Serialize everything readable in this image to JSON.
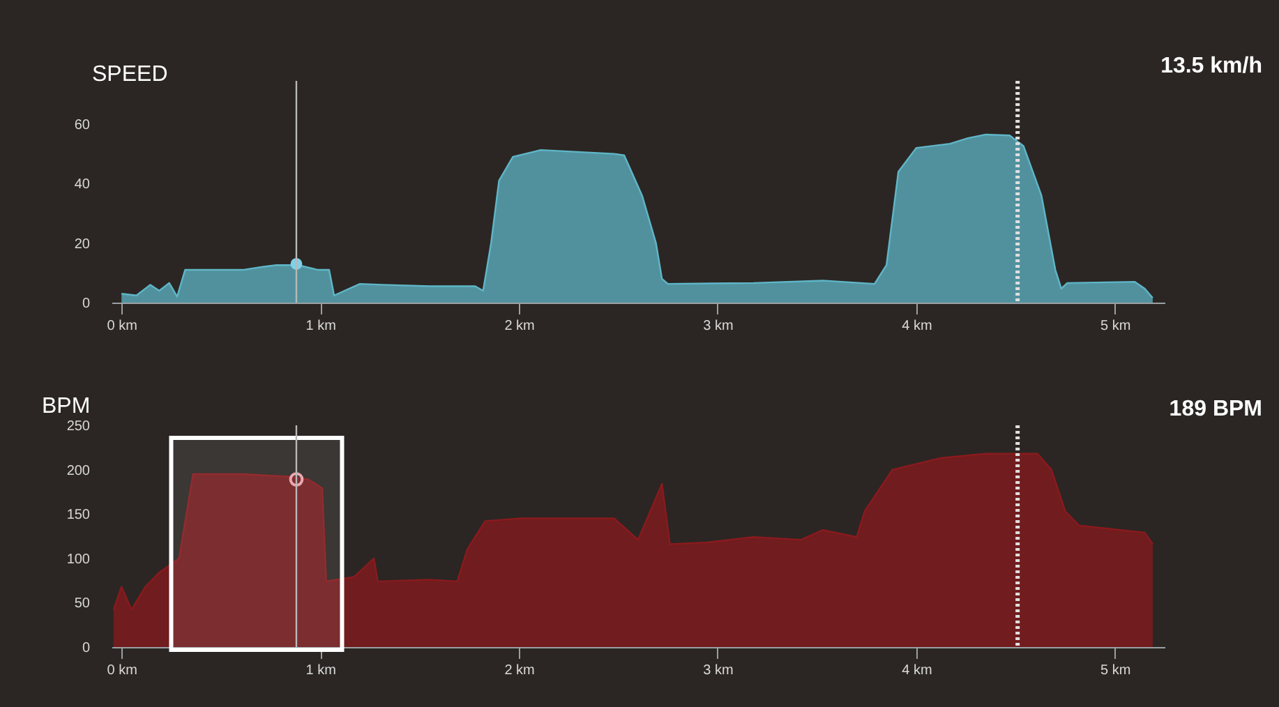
{
  "chart_data": [
    {
      "type": "area",
      "title": "SPEED",
      "annotations": [
        "13.5 km/h"
      ],
      "xlim": [
        -0.05,
        5.25
      ],
      "ylim": [
        0,
        60
      ],
      "xticks": [
        {
          "value": 0,
          "label": "0 km"
        },
        {
          "value": 1,
          "label": "1 km"
        },
        {
          "value": 2,
          "label": "2 km"
        },
        {
          "value": 3,
          "label": "3 km"
        },
        {
          "value": 4,
          "label": "4 km"
        },
        {
          "value": 5,
          "label": "5 km"
        }
      ],
      "yticks": [
        0,
        20,
        40,
        60
      ],
      "series": [
        {
          "type": "area",
          "color": "#5fb6c8",
          "x": [
            0,
            0.075,
            0.145,
            0.19,
            0.24,
            0.28,
            0.32,
            0.61,
            0.71,
            0.78,
            0.89,
            0.99,
            1.045,
            1.07,
            1.2,
            1.31,
            1.55,
            1.78,
            1.82,
            1.86,
            1.9,
            1.97,
            2.11,
            2.48,
            2.53,
            2.62,
            2.69,
            2.72,
            2.75,
            3.18,
            3.53,
            3.79,
            3.85,
            3.91,
            4,
            4.17,
            4.26,
            4.35,
            4.47,
            4.54,
            4.63,
            4.7,
            4.73,
            4.76,
            5.1,
            5.15,
            5.19
          ],
          "values": [
            3,
            2.4,
            6,
            4,
            6.6,
            2,
            11,
            11,
            12,
            12.6,
            12.6,
            11,
            11,
            2.4,
            6.3,
            6,
            5.5,
            5.5,
            4,
            20,
            41,
            49,
            51.3,
            50,
            49.5,
            36,
            20,
            8,
            6.3,
            6.6,
            7.4,
            6.3,
            12.6,
            44,
            52,
            53.4,
            55.3,
            56.5,
            56.2,
            52.6,
            36,
            11,
            4.7,
            6.6,
            7,
            4.7,
            1.6
          ]
        },
        {
          "type": "scatter",
          "color": "#7fd0e8",
          "x": [
            0.88
          ],
          "values": [
            13
          ]
        }
      ],
      "ref_lines": [
        {
          "axis": "x",
          "value": 0.88,
          "color": "#b8b8b8",
          "line_style": "solid"
        },
        {
          "axis": "x",
          "value": 4.51,
          "color": "#e0e0e0",
          "line_style": "dotted"
        }
      ]
    },
    {
      "type": "area",
      "title": "BPM",
      "annotations": [
        "189 BPM"
      ],
      "xlim": [
        -0.05,
        5.25
      ],
      "ylim": [
        0,
        250
      ],
      "xticks": [
        {
          "value": 0,
          "label": "0 km"
        },
        {
          "value": 1,
          "label": "1 km"
        },
        {
          "value": 2,
          "label": "2 km"
        },
        {
          "value": 3,
          "label": "3 km"
        },
        {
          "value": 4,
          "label": "4 km"
        },
        {
          "value": 5,
          "label": "5 km"
        }
      ],
      "yticks": [
        0,
        50,
        100,
        150,
        200,
        250
      ],
      "series": [
        {
          "type": "area",
          "color": "#8a1a1e",
          "x": [
            -0.04,
            0,
            0.05,
            0.12,
            0.19,
            0.29,
            0.36,
            0.61,
            0.85,
            0.94,
            1.01,
            1.03,
            1.17,
            1.27,
            1.29,
            1.55,
            1.69,
            1.74,
            1.83,
            2.01,
            2.48,
            2.6,
            2.72,
            2.76,
            2.95,
            3.18,
            3.42,
            3.53,
            3.7,
            3.74,
            3.88,
            4.12,
            4.35,
            4.45,
            4.61,
            4.68,
            4.75,
            4.82,
            5.15,
            5.19
          ],
          "values": [
            42,
            68,
            42,
            68,
            84,
            100,
            195,
            195,
            192,
            189,
            179,
            74,
            79,
            100,
            74,
            76,
            74,
            110,
            142,
            145,
            145,
            121,
            184,
            116,
            118,
            124,
            121,
            132,
            124,
            153,
            200,
            213,
            218,
            218,
            218,
            200,
            153,
            137,
            129,
            116
          ]
        },
        {
          "type": "scatter",
          "color": "#e8a0a8",
          "x": [
            0.88
          ],
          "values": [
            189
          ]
        }
      ],
      "ref_lines": [
        {
          "axis": "x",
          "value": 0.88,
          "color": "#b8b8b8",
          "line_style": "solid"
        },
        {
          "axis": "x",
          "value": 4.51,
          "color": "#e0e0e0",
          "line_style": "dotted"
        }
      ],
      "bands": [
        {
          "axis": "x",
          "from": 0.25,
          "to": 1.11,
          "color": "#ffffff"
        }
      ]
    }
  ]
}
